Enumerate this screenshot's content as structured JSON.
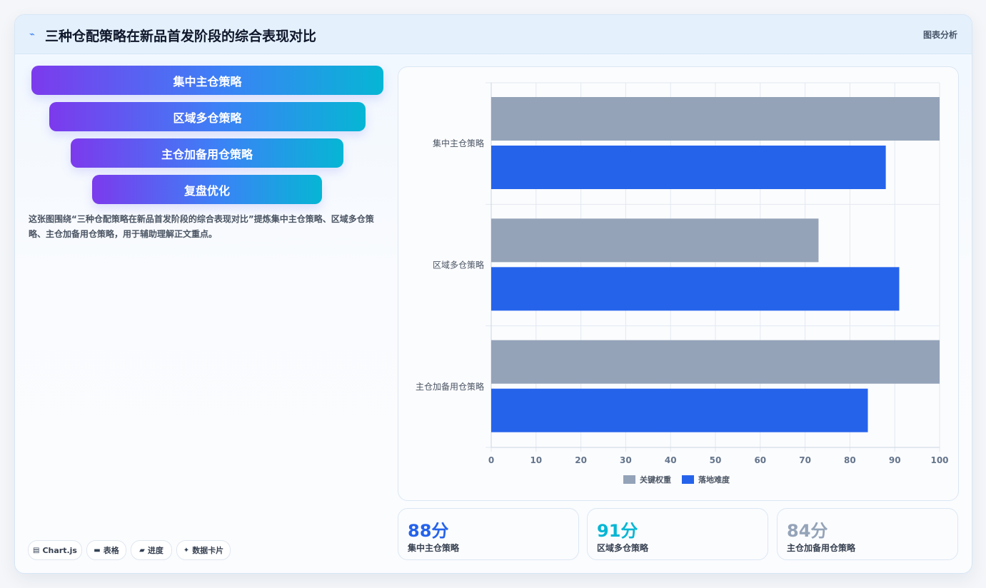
{
  "header": {
    "icon": "sparkline-icon",
    "title": "三种仓配策略在新品首发阶段的综合表现对比",
    "tag": "图表分析"
  },
  "funnel": {
    "items": [
      "集中主仓策略",
      "区域多仓策略",
      "主仓加备用仓策略",
      "复盘优化"
    ],
    "gradient": [
      "#7c3aed",
      "#3b82f6",
      "#06b6d4"
    ]
  },
  "description": "这张图围绕“三种仓配策略在新品首发阶段的综合表现对比”提炼集中主仓策略、区域多仓策略、主仓加备用仓策略，用于辅助理解正文重点。",
  "chips": [
    {
      "icon": "chart-icon",
      "glyph": "▤",
      "label": "Chart.js"
    },
    {
      "icon": "table-icon",
      "glyph": "▬",
      "label": "表格"
    },
    {
      "icon": "progress-icon",
      "glyph": "▰",
      "label": "进度"
    },
    {
      "icon": "card-icon",
      "glyph": "✦",
      "label": "数据卡片"
    }
  ],
  "chart_data": {
    "type": "bar",
    "orientation": "horizontal",
    "categories": [
      "集中主仓策略",
      "区域多仓策略",
      "主仓加备用仓策略"
    ],
    "series": [
      {
        "name": "关键权重",
        "values": [
          100,
          73,
          100
        ],
        "color": "#94a3b8"
      },
      {
        "name": "落地难度",
        "values": [
          88,
          91,
          84
        ],
        "color": "#2563eb"
      }
    ],
    "xlim": [
      0,
      100
    ],
    "xticks": [
      0,
      10,
      20,
      30,
      40,
      50,
      60,
      70,
      80,
      90,
      100
    ],
    "grid": true,
    "legend": "bottom"
  },
  "stats": [
    {
      "value": "88分",
      "label": "集中主仓策略",
      "color": "#2563eb"
    },
    {
      "value": "91分",
      "label": "区域多仓策略",
      "color": "#06b6d4"
    },
    {
      "value": "84分",
      "label": "主仓加备用仓策略",
      "color": "#94a3b8"
    }
  ]
}
